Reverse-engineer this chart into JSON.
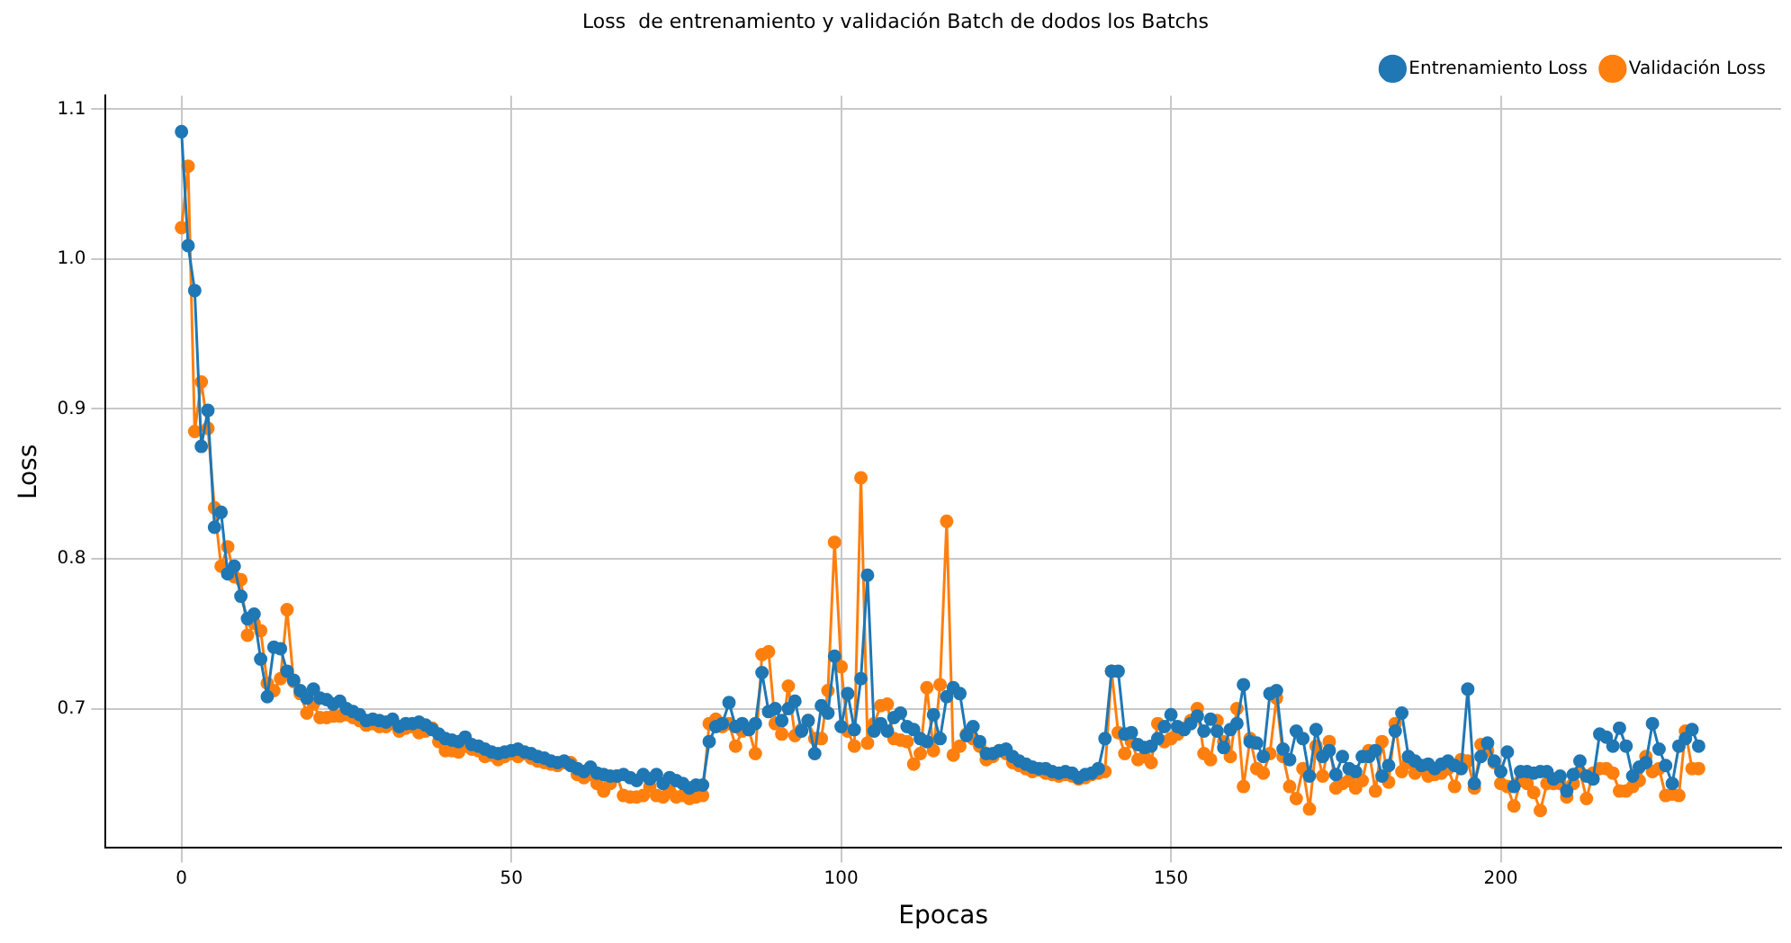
{
  "chart_data": {
    "type": "line",
    "title": "Loss  de entrenamiento y validación Batch de dodos los Batchs",
    "xlabel": "Epocas",
    "ylabel": "Loss",
    "x": [
      0,
      1,
      2,
      3,
      4,
      5,
      6,
      7,
      8,
      9,
      10,
      11,
      12,
      13,
      14,
      15,
      16,
      17,
      18,
      19,
      20,
      21,
      22,
      23,
      24,
      25,
      26,
      27,
      28,
      29,
      30,
      31,
      32,
      33,
      34,
      35,
      36,
      37,
      38,
      39,
      40,
      41,
      42,
      43,
      44,
      45,
      46,
      47,
      48,
      49,
      50,
      51,
      52,
      53,
      54,
      55,
      56,
      57,
      58,
      59,
      60,
      61,
      62,
      63,
      64,
      65,
      66,
      67,
      68,
      69,
      70,
      71,
      72,
      73,
      74,
      75,
      76,
      77,
      78,
      79,
      80,
      81,
      82,
      83,
      84,
      85,
      86,
      87,
      88,
      89,
      90,
      91,
      92,
      93,
      94,
      95,
      96,
      97,
      98,
      99,
      100,
      101,
      102,
      103,
      104,
      105,
      106,
      107,
      108,
      109,
      110,
      111,
      112,
      113,
      114,
      115,
      116,
      117,
      118,
      119,
      120,
      121,
      122,
      123,
      124,
      125,
      126,
      127,
      128,
      129,
      130,
      131,
      132,
      133,
      134,
      135,
      136,
      137,
      138,
      139,
      140,
      141,
      142,
      143,
      144,
      145,
      146,
      147,
      148,
      149,
      150,
      151,
      152,
      153,
      154,
      155,
      156,
      157,
      158,
      159,
      160,
      161,
      162,
      163,
      164,
      165,
      166,
      167,
      168,
      169,
      170,
      171,
      172,
      173,
      174,
      175,
      176,
      177,
      178,
      179,
      180,
      181,
      182,
      183,
      184,
      185,
      186,
      187,
      188,
      189,
      190,
      191,
      192,
      193,
      194,
      195,
      196,
      197,
      198,
      199,
      200,
      201,
      202,
      203,
      204,
      205,
      206,
      207,
      208,
      209,
      210,
      211,
      212,
      213,
      214,
      215,
      216,
      217,
      218,
      219,
      220,
      221,
      222,
      223,
      224,
      225,
      226,
      227,
      228,
      229,
      230
    ],
    "series": [
      {
        "name": "Entrenamiento Loss",
        "color": "#1f77b4",
        "values": [
          1.085,
          1.009,
          0.979,
          0.875,
          0.899,
          0.821,
          0.831,
          0.79,
          0.795,
          0.775,
          0.76,
          0.763,
          0.733,
          0.708,
          0.741,
          0.74,
          0.725,
          0.719,
          0.712,
          0.707,
          0.713,
          0.707,
          0.706,
          0.703,
          0.705,
          0.7,
          0.698,
          0.696,
          0.692,
          0.693,
          0.692,
          0.691,
          0.693,
          0.688,
          0.69,
          0.69,
          0.691,
          0.689,
          0.686,
          0.683,
          0.68,
          0.679,
          0.678,
          0.681,
          0.676,
          0.675,
          0.673,
          0.671,
          0.67,
          0.671,
          0.672,
          0.673,
          0.671,
          0.67,
          0.668,
          0.667,
          0.665,
          0.664,
          0.665,
          0.662,
          0.66,
          0.658,
          0.661,
          0.657,
          0.656,
          0.655,
          0.655,
          0.656,
          0.654,
          0.652,
          0.656,
          0.653,
          0.656,
          0.65,
          0.654,
          0.652,
          0.65,
          0.647,
          0.649,
          0.649,
          0.678,
          0.688,
          0.69,
          0.704,
          0.688,
          0.69,
          0.686,
          0.69,
          0.724,
          0.698,
          0.7,
          0.692,
          0.7,
          0.705,
          0.685,
          0.692,
          0.67,
          0.702,
          0.697,
          0.735,
          0.688,
          0.71,
          0.686,
          0.72,
          0.789,
          0.685,
          0.69,
          0.685,
          0.694,
          0.697,
          0.688,
          0.686,
          0.68,
          0.678,
          0.696,
          0.68,
          0.708,
          0.714,
          0.71,
          0.682,
          0.688,
          0.678,
          0.67,
          0.67,
          0.672,
          0.673,
          0.668,
          0.665,
          0.663,
          0.661,
          0.66,
          0.66,
          0.658,
          0.657,
          0.658,
          0.657,
          0.654,
          0.656,
          0.657,
          0.66,
          0.68,
          0.725,
          0.725,
          0.683,
          0.684,
          0.676,
          0.674,
          0.675,
          0.68,
          0.688,
          0.696,
          0.688,
          0.686,
          0.69,
          0.695,
          0.685,
          0.693,
          0.685,
          0.674,
          0.686,
          0.69,
          0.716,
          0.678,
          0.677,
          0.668,
          0.71,
          0.712,
          0.673,
          0.666,
          0.685,
          0.68,
          0.655,
          0.686,
          0.668,
          0.672,
          0.656,
          0.668,
          0.66,
          0.658,
          0.668,
          0.668,
          0.672,
          0.655,
          0.662,
          0.685,
          0.697,
          0.668,
          0.665,
          0.662,
          0.663,
          0.66,
          0.663,
          0.665,
          0.662,
          0.66,
          0.713,
          0.65,
          0.668,
          0.677,
          0.665,
          0.658,
          0.671,
          0.648,
          0.658,
          0.658,
          0.657,
          0.658,
          0.658,
          0.653,
          0.655,
          0.645,
          0.656,
          0.665,
          0.655,
          0.653,
          0.683,
          0.681,
          0.675,
          0.687,
          0.675,
          0.655,
          0.661,
          0.664,
          0.69,
          0.673,
          0.662,
          0.65,
          0.675,
          0.68,
          0.686,
          0.675
        ]
      },
      {
        "name": "Validación Loss",
        "color": "#ff7f0e",
        "values": [
          1.021,
          1.062,
          0.885,
          0.918,
          0.887,
          0.834,
          0.795,
          0.808,
          0.788,
          0.786,
          0.749,
          0.757,
          0.752,
          0.717,
          0.712,
          0.72,
          0.766,
          0.718,
          0.71,
          0.697,
          0.703,
          0.694,
          0.694,
          0.695,
          0.695,
          0.696,
          0.694,
          0.692,
          0.689,
          0.69,
          0.688,
          0.688,
          0.69,
          0.685,
          0.687,
          0.688,
          0.684,
          0.685,
          0.687,
          0.678,
          0.672,
          0.672,
          0.671,
          0.675,
          0.673,
          0.672,
          0.668,
          0.669,
          0.666,
          0.668,
          0.67,
          0.668,
          0.67,
          0.667,
          0.665,
          0.664,
          0.663,
          0.662,
          0.664,
          0.664,
          0.656,
          0.654,
          0.656,
          0.65,
          0.645,
          0.65,
          0.655,
          0.642,
          0.641,
          0.641,
          0.642,
          0.648,
          0.642,
          0.641,
          0.645,
          0.641,
          0.642,
          0.64,
          0.641,
          0.642,
          0.69,
          0.693,
          0.688,
          0.69,
          0.675,
          0.685,
          0.686,
          0.67,
          0.736,
          0.738,
          0.69,
          0.683,
          0.715,
          0.682,
          0.686,
          0.692,
          0.68,
          0.68,
          0.712,
          0.811,
          0.728,
          0.685,
          0.675,
          0.854,
          0.677,
          0.69,
          0.702,
          0.703,
          0.68,
          0.679,
          0.678,
          0.663,
          0.67,
          0.714,
          0.672,
          0.716,
          0.825,
          0.669,
          0.675,
          0.683,
          0.68,
          0.675,
          0.666,
          0.668,
          0.672,
          0.67,
          0.664,
          0.662,
          0.66,
          0.658,
          0.659,
          0.657,
          0.656,
          0.655,
          0.656,
          0.655,
          0.653,
          0.654,
          0.656,
          0.657,
          0.658,
          0.725,
          0.684,
          0.67,
          0.678,
          0.666,
          0.668,
          0.664,
          0.69,
          0.678,
          0.68,
          0.683,
          0.687,
          0.692,
          0.7,
          0.67,
          0.666,
          0.692,
          0.678,
          0.668,
          0.7,
          0.648,
          0.68,
          0.66,
          0.657,
          0.67,
          0.707,
          0.668,
          0.648,
          0.64,
          0.66,
          0.633,
          0.675,
          0.655,
          0.678,
          0.647,
          0.65,
          0.652,
          0.647,
          0.652,
          0.672,
          0.645,
          0.678,
          0.651,
          0.69,
          0.658,
          0.664,
          0.657,
          0.66,
          0.655,
          0.656,
          0.657,
          0.66,
          0.648,
          0.666,
          0.665,
          0.647,
          0.676,
          0.672,
          0.664,
          0.65,
          0.648,
          0.635,
          0.652,
          0.65,
          0.644,
          0.632,
          0.65,
          0.65,
          0.65,
          0.641,
          0.65,
          0.658,
          0.64,
          0.657,
          0.66,
          0.66,
          0.657,
          0.645,
          0.645,
          0.648,
          0.652,
          0.668,
          0.658,
          0.66,
          0.642,
          0.643,
          0.642,
          0.685,
          0.66,
          0.66
        ]
      }
    ],
    "xlim": [
      -11.5,
      242.5
    ],
    "xticks": [
      0,
      50,
      100,
      150,
      200
    ],
    "ylim": [
      0.607,
      1.109
    ],
    "yticks": [
      {
        "value": 0.7,
        "label": "0.7"
      },
      {
        "value": 0.8,
        "label": "0.8"
      },
      {
        "value": 0.9,
        "label": "0.9"
      },
      {
        "value": 1.0,
        "label": "1.0"
      },
      {
        "value": 1.1,
        "label": "1.1"
      }
    ],
    "grid": true,
    "legend": "top right",
    "marker": "circle",
    "line_style": "solid"
  }
}
